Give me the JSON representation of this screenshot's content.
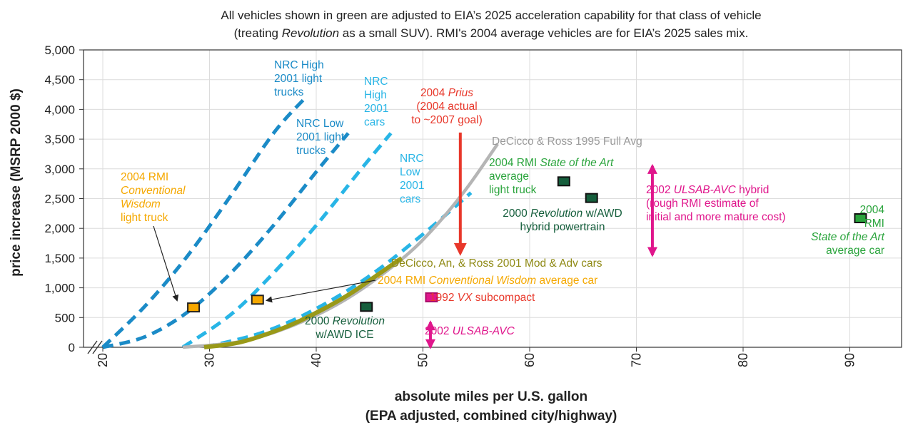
{
  "note": {
    "line1": "All vehicles shown in green are adjusted to EIA’s 2025 acceleration capability for that class of vehicle",
    "line2_pre": "(treating ",
    "line2_em": "Revolution",
    "line2_post": " as a small SUV). RMI's 2004 average vehicles are for EIA’s 2025 sales mix."
  },
  "colors": {
    "nrc_dark": "#1b8bc7",
    "nrc_light": "#28b5e6",
    "dcr_1995": "#b5b5b5",
    "dar_2001": "#999918",
    "rmi_green": "#2aa43c",
    "dark_green": "#155e3c",
    "magenta": "#e0168c",
    "red": "#e8372a",
    "orange": "#f5a800",
    "olive_text": "#8f8a15",
    "gray_text": "#9a9a9a"
  },
  "chart_data": {
    "type": "line",
    "xlabel_line1": "absolute miles per U.S. gallon",
    "xlabel_line2": "(EPA adjusted, combined city/highway)",
    "ylabel": "price increase (MSRP 2000 $)",
    "xlim": [
      20,
      96
    ],
    "ylim": [
      0,
      5000
    ],
    "x_ticks": [
      "20",
      "30",
      "40",
      "50",
      "60",
      "70",
      "80",
      "90"
    ],
    "y_ticks": [
      "0",
      "500",
      "1,000",
      "1,500",
      "2,000",
      "2,500",
      "3,000",
      "3,500",
      "4,000",
      "4,500",
      "5,000"
    ],
    "grid": true,
    "series": [
      {
        "key": "nrc_high_trucks",
        "name": "NRC High 2001 light trucks",
        "style": "dashed",
        "color": "nrc_dark",
        "x": [
          20,
          24,
          28,
          32,
          36,
          39
        ],
        "y": [
          0,
          700,
          1550,
          2550,
          3600,
          4200
        ]
      },
      {
        "key": "nrc_low_trucks",
        "name": "NRC Low 2001 light trucks",
        "style": "dashed",
        "color": "nrc_dark",
        "x": [
          20,
          24,
          28,
          32,
          36,
          40,
          43
        ],
        "y": [
          0,
          180,
          600,
          1250,
          2050,
          2950,
          3600
        ]
      },
      {
        "key": "nrc_high_cars",
        "name": "NRC High 2001 cars",
        "style": "dashed",
        "color": "nrc_light",
        "x": [
          27.5,
          32,
          36,
          40,
          44,
          47
        ],
        "y": [
          0,
          550,
          1250,
          2050,
          2950,
          3600
        ]
      },
      {
        "key": "nrc_low_cars",
        "name": "NRC Low 2001 cars",
        "style": "dashed",
        "color": "nrc_light",
        "x": [
          29.5,
          35,
          40,
          45,
          50,
          54.5
        ],
        "y": [
          0,
          250,
          650,
          1200,
          1900,
          2600
        ]
      },
      {
        "key": "dcr_1995",
        "name": "DeCicco & Ross 1995 Full Avg",
        "style": "solid",
        "color": "dcr_1995",
        "x": [
          27.5,
          33,
          38,
          43,
          48,
          51,
          54,
          57
        ],
        "y": [
          0,
          100,
          380,
          830,
          1480,
          2000,
          2650,
          3420
        ]
      },
      {
        "key": "dar_2001",
        "name": "DeCicco, An, & Ross 2001 Mod & Adv cars",
        "style": "solid",
        "color": "dar_2001",
        "x": [
          29.5,
          33,
          37,
          40,
          43,
          46,
          48
        ],
        "y": [
          0,
          90,
          330,
          580,
          880,
          1250,
          1500
        ]
      }
    ],
    "points": [
      {
        "key": "rmi_cw_truck",
        "x": 28.5,
        "y": 670,
        "fill": "orange",
        "stroke": "#222222"
      },
      {
        "key": "rmi_cw_car",
        "x": 34.5,
        "y": 800,
        "fill": "orange",
        "stroke": "#222222"
      },
      {
        "key": "rev_ice",
        "x": 44.7,
        "y": 680,
        "fill": "dark_green",
        "stroke": "#111111"
      },
      {
        "key": "vx_1992",
        "x": 50.8,
        "y": 840,
        "fill": "magenta",
        "stroke": "#aa0c68"
      },
      {
        "key": "rmi_soa_truck",
        "x": 63.2,
        "y": 2790,
        "fill": "dark_green",
        "stroke": "#111111"
      },
      {
        "key": "rev_hybrid",
        "x": 65.8,
        "y": 2510,
        "fill": "dark_green",
        "stroke": "#111111"
      },
      {
        "key": "rmi_soa_car",
        "x": 91.0,
        "y": 2170,
        "fill": "rmi_green",
        "stroke": "#111111"
      }
    ],
    "ranges": [
      {
        "key": "ulsab_avc",
        "x": 50.7,
        "y_low": 0,
        "y_high": 420,
        "color": "magenta"
      },
      {
        "key": "ulsab_avc_hybrid",
        "x": 71.5,
        "y_low": 1550,
        "y_high": 3050,
        "color": "magenta"
      },
      {
        "key": "prius",
        "x": 53.5,
        "y_from": 3610,
        "y_to": 1580,
        "color": "red"
      }
    ],
    "labels": {
      "nrc_high_trucks": [
        "NRC High",
        "2001 light",
        "trucks"
      ],
      "nrc_low_trucks": [
        "NRC Low",
        "2001 light",
        "trucks"
      ],
      "nrc_high_cars": [
        "NRC",
        "High",
        "2001",
        "cars"
      ],
      "nrc_low_cars": [
        "NRC",
        "Low",
        "2001",
        "cars"
      ],
      "prius_1_pre": "2004 ",
      "prius_1_em": "Prius",
      "prius_2": "(2004 actual",
      "prius_3": "to ~2007 goal)",
      "dcr_1995": "DeCicco & Ross 1995 Full Avg",
      "dar_2001": "DeCicco, An, & Ross 2001 Mod & Adv cars",
      "rmi_cw_car_pre": "2004 RMI ",
      "rmi_cw_car_em": "Conventional Wisdom",
      "rmi_cw_car_post": " average car",
      "rmi_cw_truck_1": "2004 RMI",
      "rmi_cw_truck_2": "Conventional",
      "rmi_cw_truck_3": "Wisdom",
      "rmi_cw_truck_4": "light truck",
      "vx_pre": "1992 ",
      "vx_em": "VX",
      "vx_post": " subcompact",
      "rev_ice_1_pre": "2000 ",
      "rev_ice_1_em": "Revolution",
      "rev_ice_2": "w/AWD ICE",
      "ulsab_pre": "2002 ",
      "ulsab_em": "ULSAB-AVC",
      "rmi_soa_truck_1_pre": "2004 RMI ",
      "rmi_soa_truck_1_em": "State of the Art",
      "rmi_soa_truck_2": "average",
      "rmi_soa_truck_3": "light truck",
      "rev_hybrid_1_pre": "2000 ",
      "rev_hybrid_1_em": "Revolution",
      "rev_hybrid_1_post": " w/AWD",
      "rev_hybrid_2": "hybrid powertrain",
      "ulsab_hybrid_1_pre": "2002 ",
      "ulsab_hybrid_1_em": "ULSAB-AVC",
      "ulsab_hybrid_1_post": " hybrid",
      "ulsab_hybrid_2": "(rough RMI estimate of",
      "ulsab_hybrid_3": "initial and more mature cost)",
      "rmi_soa_car_1": "2004",
      "rmi_soa_car_2": "RMI",
      "rmi_soa_car_3": "State of the Art",
      "rmi_soa_car_4": "average car"
    }
  }
}
